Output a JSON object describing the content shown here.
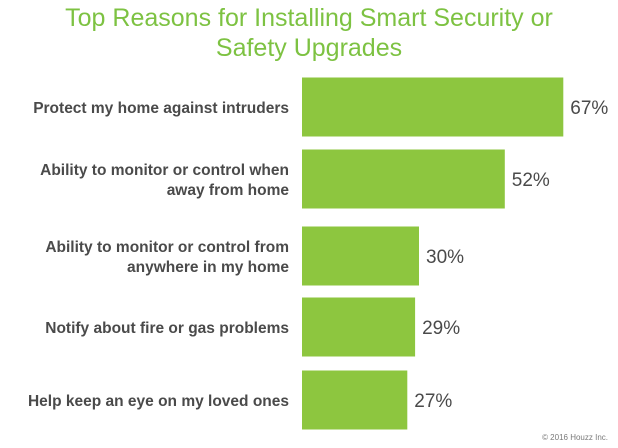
{
  "chart_data": {
    "type": "bar",
    "orientation": "horizontal",
    "title": [
      "Top Reasons for Installing Smart Security or",
      "Safety Upgrades"
    ],
    "categories": [
      [
        "Protect my home against intruders"
      ],
      [
        "Ability to monitor or control when",
        "away from home"
      ],
      [
        "Ability to monitor or control from",
        "anywhere in my home"
      ],
      [
        "Notify about fire or gas problems"
      ],
      [
        "Help keep an eye on my loved ones"
      ]
    ],
    "values": [
      67,
      52,
      30,
      29,
      27
    ],
    "value_labels": [
      "67%",
      "52%",
      "30%",
      "29%",
      "27%"
    ],
    "grid": false,
    "colors": {
      "bar": "#8dc63f",
      "title": "#7dc242",
      "text": "#4a4a4a"
    }
  },
  "footer": {
    "copyright": "© 2016 Houzz Inc."
  }
}
